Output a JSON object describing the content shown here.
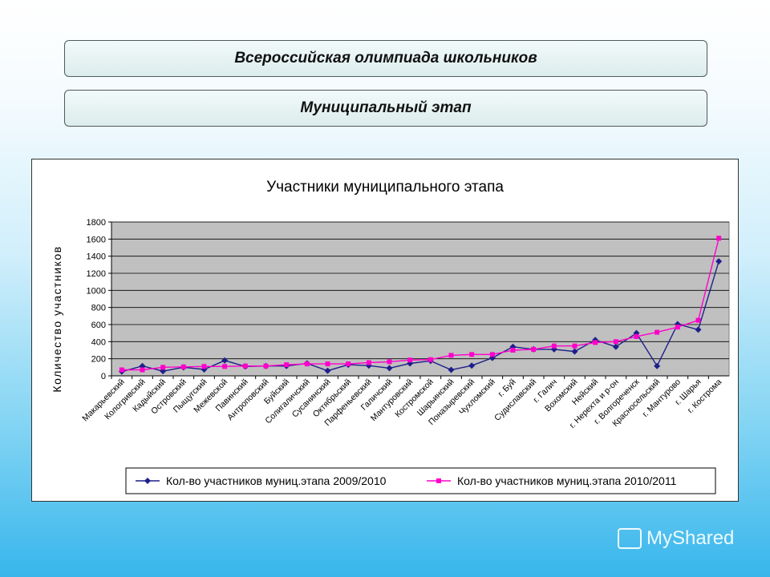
{
  "slide": {
    "banner1": "Всероссийская олимпиада школьников",
    "banner2": "Муниципальный этап",
    "watermark": "MyShared"
  },
  "colors": {
    "series1": "#1f1f8a",
    "series2": "#ff00cc",
    "plot_bg": "#c0c0c0",
    "grid": "#000000"
  },
  "chart_data": {
    "type": "line",
    "title": "Участники муниципального этапа",
    "xlabel": "",
    "ylabel": "Количество участников",
    "ylim": [
      0,
      1800
    ],
    "yticks": [
      0,
      200,
      400,
      600,
      800,
      1000,
      1200,
      1400,
      1600,
      1800
    ],
    "grid": true,
    "legend_position": "bottom",
    "categories": [
      "Макарьевский",
      "Кологривский",
      "Кадыйский",
      "Островский",
      "Пыщугский",
      "Межевской",
      "Павинский",
      "Антроповский",
      "Буйский",
      "Солигаличский",
      "Сусанинский",
      "Октябрьский",
      "Парфеньевский",
      "Галичский",
      "Мантуровский",
      "Костромской",
      "Шарьинский",
      "Поназыревский",
      "Чухломский",
      "г. Буй",
      "Судиславский",
      "г. Галич",
      "Вохомский",
      "Нейский",
      "г. Нерехта и р-он",
      "г. Волгореченск",
      "Красносельский",
      "г. Мантурово",
      "г. Шарья",
      "г. Кострома"
    ],
    "series": [
      {
        "name": "Кол-во участников муниц.этапа 2009/2010",
        "marker": "diamond",
        "values": [
          50,
          115,
          55,
          100,
          75,
          180,
          110,
          115,
          115,
          145,
          60,
          130,
          120,
          90,
          145,
          175,
          70,
          120,
          210,
          340,
          310,
          310,
          285,
          420,
          340,
          500,
          115,
          605,
          540,
          1340
        ]
      },
      {
        "name": "Кол-во участников муниц.этапа 2010/2011",
        "marker": "square",
        "values": [
          70,
          70,
          100,
          105,
          110,
          110,
          115,
          115,
          130,
          140,
          140,
          140,
          155,
          165,
          185,
          190,
          240,
          250,
          250,
          300,
          310,
          350,
          350,
          390,
          400,
          460,
          510,
          570,
          650,
          1610
        ]
      }
    ]
  }
}
